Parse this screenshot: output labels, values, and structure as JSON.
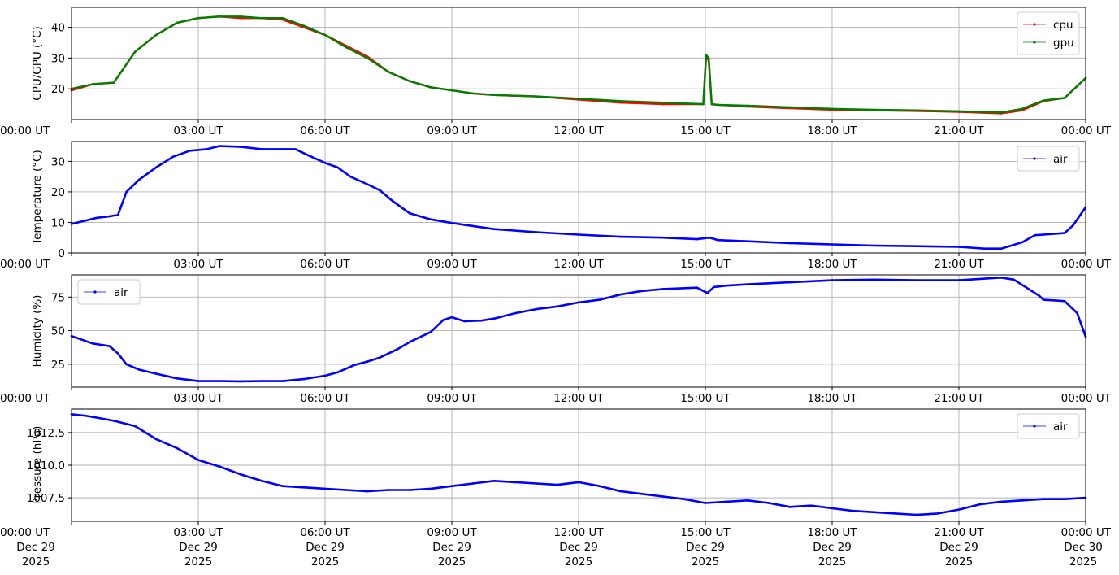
{
  "colors": {
    "cpu": "#ff0000",
    "gpu": "#008000",
    "air": "#0000ff",
    "grid": "#b0b0b0"
  },
  "chart_data": [
    {
      "type": "line",
      "ylabel": "CPU/GPU (°C)",
      "ylim": [
        10,
        46.5
      ],
      "yticks": [
        20,
        30,
        40
      ],
      "xlim": [
        "2025-12-29 00:00",
        "2025-12-30 00:00"
      ],
      "grid": true,
      "legend": "top-right",
      "series": [
        {
          "name": "cpu",
          "color": "#ff0000",
          "x_hours": [
            0,
            0.5,
            1,
            1.2,
            1.5,
            2,
            2.5,
            3,
            3.5,
            4,
            4.5,
            5,
            5.5,
            6,
            6.5,
            7,
            7.5,
            8,
            8.5,
            9,
            9.5,
            10,
            11,
            12,
            13,
            14,
            14.95,
            15.02,
            15.08,
            15.15,
            15.3,
            16,
            17,
            18,
            19,
            20,
            21,
            22,
            22.5,
            23,
            23.5,
            24
          ],
          "values": [
            19.5,
            21.5,
            22,
            26,
            32,
            37.5,
            41.5,
            43,
            43.5,
            43,
            43,
            42.5,
            40,
            37.5,
            34,
            30.5,
            25.5,
            22.5,
            20.5,
            19.5,
            18.5,
            18,
            17.5,
            16.5,
            15.5,
            15,
            15,
            31,
            29,
            15,
            14.8,
            14.2,
            13.7,
            13.2,
            13,
            12.8,
            12.5,
            12,
            13,
            16,
            17,
            23.5
          ]
        },
        {
          "name": "gpu",
          "color": "#008000",
          "x_hours": [
            0,
            0.5,
            1,
            1.2,
            1.5,
            2,
            2.5,
            3,
            3.5,
            4,
            4.5,
            5,
            5.5,
            6,
            6.5,
            7,
            7.5,
            8,
            8.5,
            9,
            9.5,
            10,
            11,
            12,
            13,
            14,
            14.95,
            15.02,
            15.08,
            15.15,
            15.3,
            16,
            17,
            18,
            19,
            20,
            21,
            22,
            22.5,
            23,
            23.5,
            24
          ],
          "values": [
            20,
            21.5,
            22,
            26,
            32,
            37.5,
            41.5,
            43,
            43.5,
            43.5,
            43,
            43,
            40.5,
            37.5,
            33.5,
            30,
            25.5,
            22.5,
            20.5,
            19.5,
            18.5,
            18,
            17.5,
            16.8,
            16,
            15.5,
            15,
            31,
            30,
            15,
            14.8,
            14.5,
            14,
            13.5,
            13.2,
            13,
            12.7,
            12.3,
            13.5,
            16.2,
            17,
            23.5
          ]
        }
      ]
    },
    {
      "type": "line",
      "ylabel": "Temperature (°C)",
      "ylim": [
        0,
        36.5
      ],
      "yticks": [
        0,
        10,
        20,
        30
      ],
      "xlim": [
        "2025-12-29 00:00",
        "2025-12-30 00:00"
      ],
      "grid": true,
      "legend": "top-right",
      "series": [
        {
          "name": "air",
          "color": "#0000ff",
          "x_hours": [
            0,
            0.3,
            0.6,
            0.9,
            1.1,
            1.3,
            1.6,
            2,
            2.4,
            2.8,
            3.2,
            3.5,
            4,
            4.5,
            5,
            5.3,
            5.6,
            6,
            6.3,
            6.6,
            7,
            7.3,
            7.6,
            8,
            8.5,
            9,
            10,
            11,
            12,
            13,
            14,
            14.8,
            15.1,
            15.3,
            16,
            17,
            18,
            19,
            20,
            21,
            21.6,
            22,
            22.5,
            22.8,
            23,
            23.5,
            23.7,
            24
          ],
          "values": [
            9.5,
            10.5,
            11.5,
            12,
            12.5,
            20,
            24,
            28,
            31.5,
            33.5,
            34,
            35,
            34.8,
            34,
            34,
            34,
            32,
            29.5,
            28,
            25,
            22.5,
            20.5,
            17,
            13,
            11,
            9.8,
            7.8,
            6.8,
            6,
            5.3,
            5,
            4.5,
            5,
            4.2,
            3.8,
            3.2,
            2.8,
            2.4,
            2.2,
            2,
            1.4,
            1.4,
            3.5,
            5.8,
            6,
            6.5,
            9,
            15
          ]
        }
      ]
    },
    {
      "type": "line",
      "ylabel": "Humidity (%)",
      "ylim": [
        8,
        91.5
      ],
      "yticks": [
        25,
        50,
        75
      ],
      "xlim": [
        "2025-12-29 00:00",
        "2025-12-30 00:00"
      ],
      "grid": true,
      "legend": "top-left",
      "series": [
        {
          "name": "air",
          "color": "#0000ff",
          "x_hours": [
            0,
            0.5,
            0.9,
            1.1,
            1.3,
            1.6,
            2,
            2.5,
            3,
            3.5,
            4,
            4.5,
            5,
            5.5,
            6,
            6.3,
            6.7,
            7,
            7.3,
            7.7,
            8,
            8.5,
            8.8,
            9,
            9.3,
            9.7,
            10,
            10.5,
            11,
            11.5,
            12,
            12.5,
            13,
            13.5,
            14,
            14.8,
            15.05,
            15.2,
            15.5,
            16,
            17,
            18,
            19,
            20,
            21,
            22,
            22.3,
            22.6,
            22.9,
            23,
            23.5,
            23.8,
            24
          ],
          "values": [
            46,
            40.5,
            38.5,
            33,
            25,
            21,
            18,
            14.5,
            12.5,
            12.5,
            12.3,
            12.5,
            12.5,
            14,
            16.5,
            19,
            24.5,
            27,
            30,
            36,
            41.5,
            49,
            58,
            60,
            57,
            57.5,
            59,
            63,
            66,
            68,
            71,
            73,
            77,
            79.5,
            81,
            82,
            78,
            82.5,
            83.5,
            84.5,
            86,
            87.5,
            88,
            87.5,
            87.5,
            89.5,
            88,
            82,
            76,
            73,
            72,
            63,
            45.5
          ]
        }
      ]
    },
    {
      "type": "line",
      "ylabel": "Pressure (hPa)",
      "ylim": [
        1005.7,
        1014.3
      ],
      "yticks": [
        1007.5,
        1010.0,
        1012.5
      ],
      "ytick_labels": [
        "1007.5",
        "1010.0",
        "1012.5"
      ],
      "xlim": [
        "2025-12-29 00:00",
        "2025-12-30 00:00"
      ],
      "grid": true,
      "legend": "top-right",
      "series": [
        {
          "name": "air",
          "color": "#0000ff",
          "x_hours": [
            0,
            0.3,
            0.5,
            1,
            1.5,
            2,
            2.5,
            3,
            3.5,
            4,
            4.5,
            5,
            5.5,
            6,
            6.5,
            7,
            7.5,
            8,
            8.5,
            9,
            9.5,
            10,
            10.5,
            11,
            11.5,
            12,
            12.5,
            13,
            13.5,
            14,
            14.5,
            15,
            16,
            16.5,
            17,
            17.5,
            18,
            18.5,
            19,
            19.5,
            20,
            20.5,
            21,
            21.5,
            22,
            22.5,
            23,
            23.5,
            24
          ],
          "values": [
            1013.9,
            1013.8,
            1013.7,
            1013.4,
            1013.0,
            1012.0,
            1011.3,
            1010.4,
            1009.9,
            1009.3,
            1008.8,
            1008.4,
            1008.3,
            1008.2,
            1008.1,
            1008.0,
            1008.1,
            1008.1,
            1008.2,
            1008.4,
            1008.6,
            1008.8,
            1008.7,
            1008.6,
            1008.5,
            1008.7,
            1008.4,
            1008.0,
            1007.8,
            1007.6,
            1007.4,
            1007.1,
            1007.3,
            1007.1,
            1006.8,
            1006.9,
            1006.7,
            1006.5,
            1006.4,
            1006.3,
            1006.2,
            1006.3,
            1006.6,
            1007.0,
            1007.2,
            1007.3,
            1007.4,
            1007.4,
            1007.5
          ]
        }
      ]
    }
  ],
  "xticks": {
    "hours": [
      0,
      3,
      6,
      9,
      12,
      15,
      18,
      21,
      24
    ],
    "labels": [
      "00:00 UT",
      "03:00 UT",
      "06:00 UT",
      "09:00 UT",
      "12:00 UT",
      "15:00 UT",
      "18:00 UT",
      "21:00 UT",
      "00:00 UT"
    ],
    "date_lines": [
      [
        "Dec 29",
        "2025"
      ],
      [
        "Dec 29",
        "2025"
      ],
      [
        "Dec 29",
        "2025"
      ],
      [
        "Dec 29",
        "2025"
      ],
      [
        "Dec 29",
        "2025"
      ],
      [
        "Dec 29",
        "2025"
      ],
      [
        "Dec 29",
        "2025"
      ],
      [
        "Dec 29",
        "2025"
      ],
      [
        "Dec 30",
        "2025"
      ]
    ]
  }
}
